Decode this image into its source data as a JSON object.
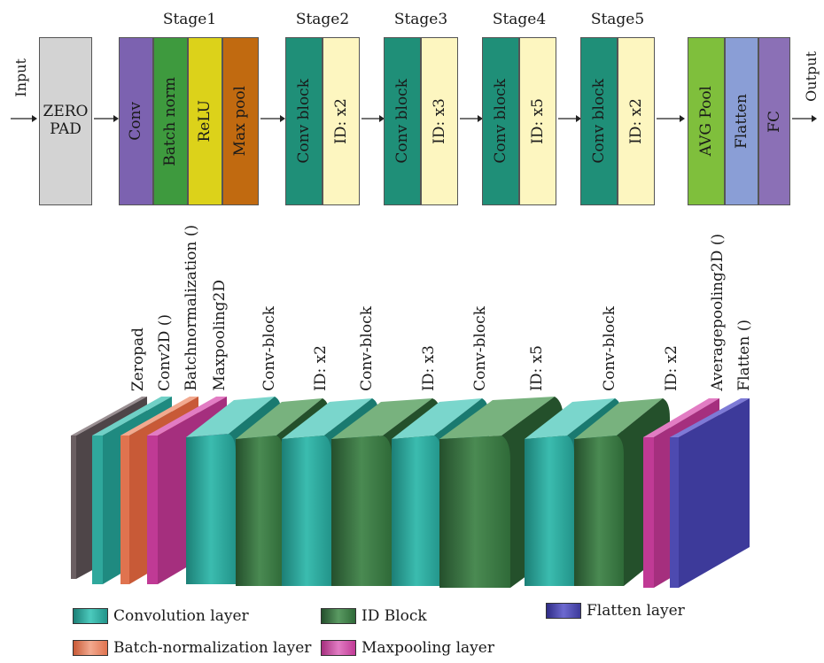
{
  "top": {
    "input_label": "Input",
    "output_label": "Output",
    "zero_pad": "ZERO\nPAD",
    "stage1": {
      "title": "Stage1",
      "blocks": [
        "Conv",
        "Batch norm",
        "ReLU",
        "Max pool"
      ]
    },
    "stage2": {
      "title": "Stage2",
      "blocks": [
        "Conv block",
        "ID: x2"
      ]
    },
    "stage3": {
      "title": "Stage3",
      "blocks": [
        "Conv block",
        "ID: x3"
      ]
    },
    "stage4": {
      "title": "Stage4",
      "blocks": [
        "Conv block",
        "ID: x5"
      ]
    },
    "stage5": {
      "title": "Stage5",
      "blocks": [
        "Conv block",
        "ID: x2"
      ]
    },
    "final": {
      "blocks": [
        "AVG Pool",
        "Flatten",
        "FC"
      ]
    }
  },
  "layers": {
    "labels": [
      "Zeropad",
      "Conv2D ()",
      "Batchnormalization ()",
      "Maxpooling2D",
      "Conv-block",
      "ID: x2",
      "Conv-block",
      "ID: x3",
      "Conv-block",
      "ID: x5",
      "Conv-block",
      "ID: x2",
      "Averagepooling2D ()",
      "Flatten ()"
    ]
  },
  "legend": {
    "conv": "Convolution layer",
    "id": "ID Block",
    "flatten": "Flatten layer",
    "bn": "Batch-normalization layer",
    "pool": "Maxpooling layer"
  },
  "colors": {
    "zero_pad": "#d3d3d3",
    "conv": "#7c62b0",
    "batch_norm": "#3e9a3e",
    "relu": "#dcd21a",
    "max_pool": "#c16a10",
    "conv_block": "#1f8f78",
    "id_block": "#fdf6c0",
    "avg_pool": "#7fbf3c",
    "flatten": "#8a9ed6",
    "fc": "#8b70b6",
    "teal3d": "#2fa89c",
    "green3d": "#3c7a45",
    "salmon3d": "#e0734f",
    "magenta3d": "#c03a95",
    "blue3d": "#3d3a9a",
    "gray3d": "#6b5f62"
  }
}
